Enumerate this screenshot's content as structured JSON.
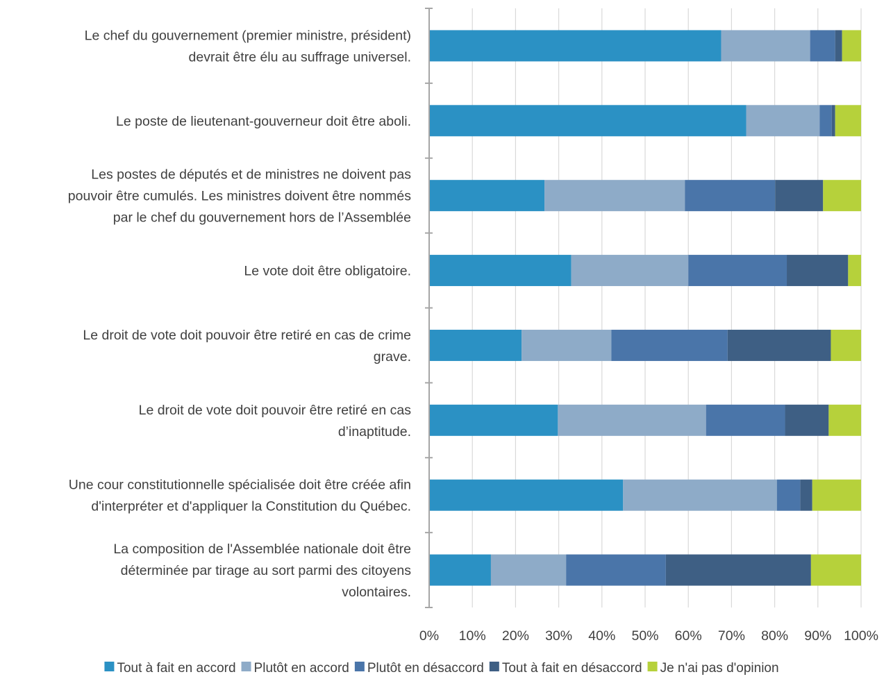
{
  "chart_data": {
    "type": "bar",
    "orientation": "horizontal",
    "stacked": "percent",
    "categories": [
      [
        "Le chef du gouvernement (premier ministre, président)",
        "devrait être élu au suffrage universel."
      ],
      [
        "Le poste de lieutenant-gouverneur doit être aboli."
      ],
      [
        "Les postes de députés et de ministres ne doivent pas",
        "pouvoir être cumulés. Les ministres doivent être nommés",
        "par le chef du gouvernement hors de l’Assemblée"
      ],
      [
        "Le vote doit être obligatoire."
      ],
      [
        "Le droit de vote doit pouvoir être retiré en cas de crime",
        "grave."
      ],
      [
        "Le droit de vote doit pouvoir être retiré en cas",
        "d’inaptitude."
      ],
      [
        "Une cour constitutionnelle spécialisée doit être créée afin",
        "d'interpréter et d'appliquer la Constitution du Québec."
      ],
      [
        "La composition de l'Assemblée nationale doit être",
        "déterminée par tirage au sort parmi des citoyens",
        "volontaires."
      ]
    ],
    "series": [
      {
        "name": "Tout à fait en accord",
        "color": "#2b91c4",
        "values": [
          67.6,
          73.4,
          26.7,
          32.9,
          21.4,
          29.8,
          44.9,
          14.3
        ]
      },
      {
        "name": "Plutôt en accord",
        "color": "#8eabc8",
        "values": [
          20.6,
          17.0,
          32.5,
          27.1,
          20.8,
          34.3,
          35.6,
          17.4
        ]
      },
      {
        "name": "Plutôt en désaccord",
        "color": "#4a75a9",
        "values": [
          5.8,
          2.8,
          20.9,
          22.8,
          26.9,
          18.3,
          5.4,
          23.1
        ]
      },
      {
        "name": "Tout à fait en désaccord",
        "color": "#3e5f84",
        "values": [
          1.6,
          0.8,
          11.1,
          14.2,
          23.9,
          10.1,
          2.8,
          33.6
        ]
      },
      {
        "name": "Je n'ai pas d'opinion",
        "color": "#b6d13b",
        "values": [
          4.4,
          6.0,
          8.8,
          3.0,
          7.0,
          7.5,
          11.3,
          11.6
        ]
      }
    ],
    "x_ticks": [
      "0%",
      "10%",
      "20%",
      "30%",
      "40%",
      "50%",
      "60%",
      "70%",
      "80%",
      "90%",
      "100%"
    ],
    "xlim": [
      0,
      100
    ],
    "grid": true,
    "legend_position": "bottom"
  }
}
